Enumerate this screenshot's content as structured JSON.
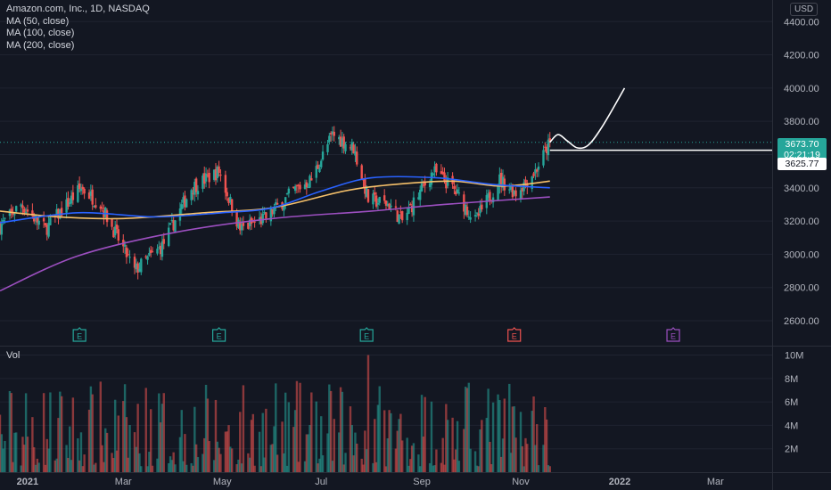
{
  "legend": {
    "title": "Amazon.com, Inc., 1D, NASDAQ",
    "ma50": "MA (50, close)",
    "ma100": "MA (100, close)",
    "ma200": "MA (200, close)"
  },
  "currency_badge": "USD",
  "volume_label": "Vol",
  "last_price": "3673.70",
  "countdown": "02:21:19",
  "drawn_line_price": "3625.77",
  "earnings_marker": "E",
  "colors": {
    "background": "#131722",
    "up": "#26a69a",
    "down": "#ef5350",
    "ma50": "#f5c06a",
    "ma100": "#2962ff",
    "ma200": "#9c4fc0",
    "projection": "#ffffff",
    "earnings_past": "#26a69a",
    "earnings_recent": "#ef5350",
    "earnings_future": "#9c4fc0"
  },
  "chart_data": {
    "type": "candlestick",
    "price_axis": {
      "ticks": [
        2600,
        2800,
        3000,
        3200,
        3400,
        3600,
        3800,
        4000,
        4200,
        4400
      ],
      "tick_labels": [
        "2600.00",
        "2800.00",
        "3000.00",
        "3200.00",
        "3400.00",
        "3600.00",
        "3800.00",
        "4000.00",
        "4200.00",
        "4400.00"
      ],
      "ylim": [
        2450,
        4530
      ]
    },
    "volume_axis": {
      "ticks": [
        2,
        4,
        6,
        8,
        10
      ],
      "tick_labels": [
        "2M",
        "4M",
        "6M",
        "8M",
        "10M"
      ],
      "ylim": [
        0,
        10.8
      ]
    },
    "x_axis": {
      "labels": [
        "2021",
        "Mar",
        "May",
        "Jul",
        "Sep",
        "Nov",
        "2022",
        "Mar"
      ],
      "bold_labels": [
        "2021",
        "2022"
      ]
    },
    "anchors": [
      {
        "date": "2020-12-15",
        "close": 3170
      },
      {
        "date": "2020-12-28",
        "close": 3300
      },
      {
        "date": "2021-01-12",
        "close": 3150
      },
      {
        "date": "2021-02-03",
        "close": 3400
      },
      {
        "date": "2021-02-15",
        "close": 3300
      },
      {
        "date": "2021-03-08",
        "close": 2900
      },
      {
        "date": "2021-03-25",
        "close": 3050
      },
      {
        "date": "2021-04-12",
        "close": 3400
      },
      {
        "date": "2021-04-29",
        "close": 3500
      },
      {
        "date": "2021-05-12",
        "close": 3150
      },
      {
        "date": "2021-05-28",
        "close": 3220
      },
      {
        "date": "2021-06-14",
        "close": 3380
      },
      {
        "date": "2021-06-25",
        "close": 3450
      },
      {
        "date": "2021-07-08",
        "close": 3720
      },
      {
        "date": "2021-07-21",
        "close": 3640
      },
      {
        "date": "2021-07-30",
        "close": 3330
      },
      {
        "date": "2021-08-12",
        "close": 3300
      },
      {
        "date": "2021-08-20",
        "close": 3200
      },
      {
        "date": "2021-09-08",
        "close": 3500
      },
      {
        "date": "2021-09-20",
        "close": 3400
      },
      {
        "date": "2021-10-04",
        "close": 3200
      },
      {
        "date": "2021-10-19",
        "close": 3450
      },
      {
        "date": "2021-10-29",
        "close": 3370
      },
      {
        "date": "2021-11-10",
        "close": 3500
      },
      {
        "date": "2021-11-19",
        "close": 3673.7
      }
    ],
    "moving_averages": [
      {
        "name": "MA (50, close)",
        "color": "#f5c06a",
        "points": [
          [
            "2020-12-15",
            3260
          ],
          [
            "2021-01-20",
            3225
          ],
          [
            "2021-03-01",
            3215
          ],
          [
            "2021-04-20",
            3250
          ],
          [
            "2021-06-01",
            3280
          ],
          [
            "2021-07-15",
            3380
          ],
          [
            "2021-08-15",
            3420
          ],
          [
            "2021-09-20",
            3440
          ],
          [
            "2021-10-20",
            3410
          ],
          [
            "2021-11-19",
            3440
          ]
        ]
      },
      {
        "name": "MA (100, close)",
        "color": "#2962ff",
        "points": [
          [
            "2020-12-15",
            3190
          ],
          [
            "2021-02-01",
            3250
          ],
          [
            "2021-03-20",
            3225
          ],
          [
            "2021-05-01",
            3250
          ],
          [
            "2021-06-01",
            3280
          ],
          [
            "2021-07-01",
            3380
          ],
          [
            "2021-08-01",
            3460
          ],
          [
            "2021-09-10",
            3460
          ],
          [
            "2021-10-15",
            3420
          ],
          [
            "2021-11-19",
            3400
          ]
        ]
      },
      {
        "name": "MA (200, close)",
        "color": "#9c4fc0",
        "points": [
          [
            "2020-12-15",
            2780
          ],
          [
            "2021-02-01",
            2990
          ],
          [
            "2021-04-01",
            3130
          ],
          [
            "2021-06-01",
            3215
          ],
          [
            "2021-08-01",
            3260
          ],
          [
            "2021-09-15",
            3300
          ],
          [
            "2021-11-19",
            3345
          ]
        ]
      }
    ],
    "earnings_markers": [
      {
        "date": "2021-02-02",
        "label": "E",
        "status": "past"
      },
      {
        "date": "2021-04-29",
        "label": "E",
        "status": "past"
      },
      {
        "date": "2021-07-29",
        "label": "E",
        "status": "past"
      },
      {
        "date": "2021-10-28",
        "label": "E",
        "status": "recent"
      },
      {
        "date": "2022-02-03",
        "label": "E",
        "status": "future"
      }
    ],
    "projection_curve": [
      [
        "2021-11-19",
        3673.7
      ],
      [
        "2021-11-24",
        3720
      ],
      [
        "2021-11-30",
        3680
      ],
      [
        "2021-12-06",
        3640
      ],
      [
        "2021-12-13",
        3660
      ],
      [
        "2021-12-22",
        3780
      ],
      [
        "2022-01-04",
        4000
      ]
    ],
    "horizontal_line": {
      "start": "2021-11-19",
      "price": 3625.77
    },
    "volume_peak": {
      "date": "2021-07-30",
      "value": 10.0
    },
    "volume_range": [
      0.5,
      7.8
    ],
    "x_range": [
      "2020-12-15",
      "2022-03-25"
    ]
  }
}
